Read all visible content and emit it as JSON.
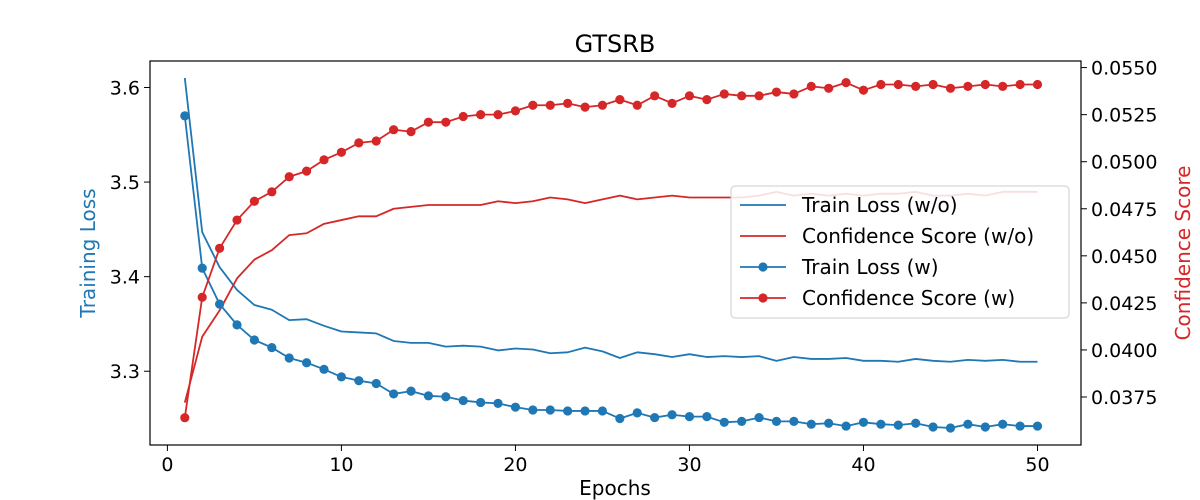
{
  "chart_data": {
    "type": "line",
    "title": "GTSRB",
    "xlabel": "Epochs",
    "ylabel_left": "Training Loss",
    "ylabel_right": "Confidence Score",
    "xlim": [
      -1,
      52.5
    ],
    "ylim_left": [
      3.222,
      3.628
    ],
    "ylim_right": [
      0.03495,
      0.05535
    ],
    "x_ticks": [
      0,
      10,
      20,
      30,
      40,
      50
    ],
    "x_tick_labels": [
      "0",
      "10",
      "20",
      "30",
      "40",
      "50"
    ],
    "y_left_ticks": [
      3.3,
      3.4,
      3.5,
      3.6
    ],
    "y_left_tick_labels": [
      "3.3",
      "3.4",
      "3.5",
      "3.6"
    ],
    "y_right_ticks": [
      0.0375,
      0.04,
      0.0425,
      0.045,
      0.0475,
      0.05,
      0.0525,
      0.055
    ],
    "y_right_tick_labels": [
      "0.0375",
      "0.0400",
      "0.0425",
      "0.0450",
      "0.0475",
      "0.0500",
      "0.0525",
      "0.0550"
    ],
    "colors": {
      "blue": "#1f77b4",
      "red": "#d62728"
    },
    "legend_position": "center-right",
    "x": [
      1,
      2,
      3,
      4,
      5,
      6,
      7,
      8,
      9,
      10,
      11,
      12,
      13,
      14,
      15,
      16,
      17,
      18,
      19,
      20,
      21,
      22,
      23,
      24,
      25,
      26,
      27,
      28,
      29,
      30,
      31,
      32,
      33,
      34,
      35,
      36,
      37,
      38,
      39,
      40,
      41,
      42,
      43,
      44,
      45,
      46,
      47,
      48,
      49,
      50
    ],
    "series": [
      {
        "name": "Train Loss (w/o)",
        "axis": "left",
        "color": "#1f77b4",
        "marker": false,
        "values": [
          3.61,
          3.447,
          3.41,
          3.386,
          3.37,
          3.365,
          3.354,
          3.355,
          3.348,
          3.342,
          3.341,
          3.34,
          3.332,
          3.33,
          3.33,
          3.326,
          3.327,
          3.326,
          3.322,
          3.324,
          3.323,
          3.319,
          3.32,
          3.325,
          3.321,
          3.314,
          3.32,
          3.318,
          3.315,
          3.318,
          3.315,
          3.316,
          3.315,
          3.316,
          3.311,
          3.315,
          3.313,
          3.313,
          3.314,
          3.311,
          3.311,
          3.31,
          3.313,
          3.311,
          3.31,
          3.312,
          3.311,
          3.312,
          3.31,
          3.31
        ]
      },
      {
        "name": "Confidence Score (w/o)",
        "axis": "right",
        "color": "#d62728",
        "marker": false,
        "values": [
          0.0372,
          0.0407,
          0.0421,
          0.0438,
          0.0448,
          0.0453,
          0.0461,
          0.0462,
          0.0467,
          0.0469,
          0.0471,
          0.0471,
          0.0475,
          0.0476,
          0.0477,
          0.0477,
          0.0477,
          0.0477,
          0.0479,
          0.0478,
          0.0479,
          0.0481,
          0.048,
          0.0478,
          0.048,
          0.0482,
          0.048,
          0.0481,
          0.0482,
          0.0481,
          0.0481,
          0.0481,
          0.0481,
          0.0482,
          0.0484,
          0.0482,
          0.0483,
          0.0482,
          0.0483,
          0.0482,
          0.0483,
          0.0483,
          0.0484,
          0.0482,
          0.0482,
          0.0483,
          0.0482,
          0.0484,
          0.0484,
          0.0484
        ]
      },
      {
        "name": "Train Loss (w)",
        "axis": "left",
        "color": "#1f77b4",
        "marker": true,
        "values": [
          3.57,
          3.409,
          3.371,
          3.349,
          3.333,
          3.325,
          3.314,
          3.309,
          3.302,
          3.294,
          3.29,
          3.287,
          3.276,
          3.279,
          3.274,
          3.273,
          3.269,
          3.267,
          3.266,
          3.262,
          3.259,
          3.259,
          3.258,
          3.258,
          3.258,
          3.25,
          3.256,
          3.251,
          3.254,
          3.252,
          3.252,
          3.246,
          3.247,
          3.251,
          3.247,
          3.247,
          3.244,
          3.245,
          3.242,
          3.246,
          3.244,
          3.243,
          3.245,
          3.241,
          3.24,
          3.244,
          3.241,
          3.244,
          3.242,
          3.242
        ]
      },
      {
        "name": "Confidence Score (w)",
        "axis": "right",
        "color": "#d62728",
        "marker": true,
        "values": [
          0.0364,
          0.0428,
          0.0454,
          0.0469,
          0.0479,
          0.0484,
          0.0492,
          0.0495,
          0.0501,
          0.0505,
          0.051,
          0.0511,
          0.0517,
          0.0516,
          0.0521,
          0.0521,
          0.0524,
          0.0525,
          0.0525,
          0.0527,
          0.053,
          0.053,
          0.0531,
          0.0529,
          0.053,
          0.0533,
          0.053,
          0.0535,
          0.0531,
          0.0535,
          0.0533,
          0.0536,
          0.0535,
          0.0535,
          0.0537,
          0.0536,
          0.054,
          0.0539,
          0.0542,
          0.0538,
          0.0541,
          0.0541,
          0.054,
          0.0541,
          0.0539,
          0.054,
          0.0541,
          0.054,
          0.0541,
          0.0541
        ]
      }
    ]
  }
}
